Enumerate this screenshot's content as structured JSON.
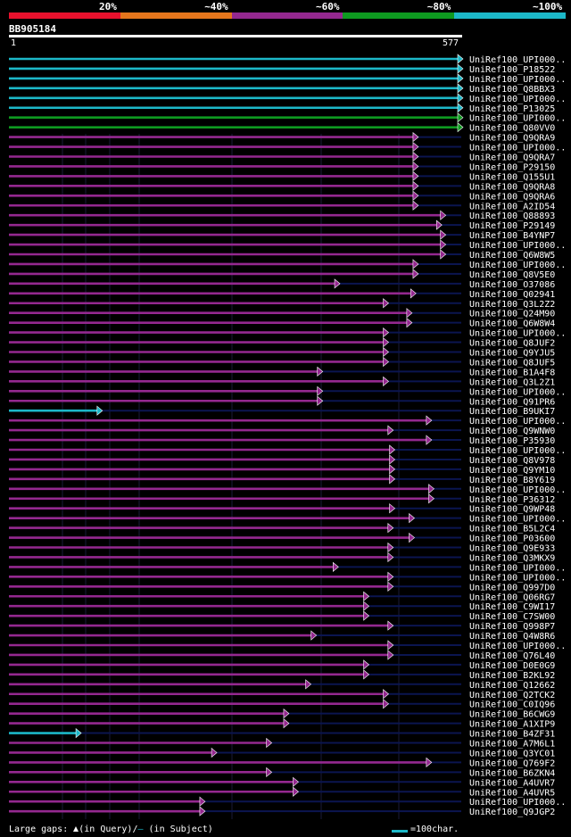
{
  "legend": {
    "bins": [
      {
        "label": "20%",
        "color": "#e8112d"
      },
      {
        "label": "~40%",
        "color": "#e6761c"
      },
      {
        "label": "~60%",
        "color": "#94288f"
      },
      {
        "label": "~80%",
        "color": "#0e9a20"
      },
      {
        "label": "~100%",
        "color": "#1cb8c8"
      }
    ]
  },
  "query": {
    "id": "BB905184",
    "start_label": "1",
    "end_label": "577"
  },
  "colors": {
    "cyan": "#1cb8c8",
    "green": "#0e9a20",
    "purple": "#94288f",
    "track": "#0b1550",
    "arrow_fill": "#cc66cc",
    "gap_marker": "#ffff99"
  },
  "chart_data": {
    "type": "alignment-overview",
    "query_length": 577,
    "hits": [
      {
        "name": "UniRef100_UPI000..",
        "end": 577,
        "identity": "~100%"
      },
      {
        "name": "UniRef100_P18522",
        "end": 577,
        "identity": "~100%"
      },
      {
        "name": "UniRef100_UPI000..",
        "end": 577,
        "identity": "~100%"
      },
      {
        "name": "UniRef100_Q8BBX3",
        "end": 577,
        "identity": "~100%"
      },
      {
        "name": "UniRef100_UPI000..",
        "end": 577,
        "identity": "~100%"
      },
      {
        "name": "UniRef100_P13025",
        "end": 577,
        "identity": "~100%"
      },
      {
        "name": "UniRef100_UPI000..",
        "end": 577,
        "identity": "~80%"
      },
      {
        "name": "UniRef100_Q80VV0",
        "end": 577,
        "identity": "~80%"
      },
      {
        "name": "UniRef100_Q9QRA9",
        "end": 520,
        "identity": "~60%"
      },
      {
        "name": "UniRef100_UPI000..",
        "end": 520,
        "identity": "~60%"
      },
      {
        "name": "UniRef100_Q9QRA7",
        "end": 520,
        "identity": "~60%"
      },
      {
        "name": "UniRef100_P29150",
        "end": 520,
        "identity": "~60%"
      },
      {
        "name": "UniRef100_Q155U1",
        "end": 520,
        "identity": "~60%"
      },
      {
        "name": "UniRef100_Q9QRA8",
        "end": 520,
        "identity": "~60%"
      },
      {
        "name": "UniRef100_Q9QRA6",
        "end": 520,
        "identity": "~60%"
      },
      {
        "name": "UniRef100_A2ID54",
        "end": 520,
        "identity": "~60%"
      },
      {
        "name": "UniRef100_Q88893",
        "end": 555,
        "identity": "~60%"
      },
      {
        "name": "UniRef100_P29149",
        "end": 550,
        "identity": "~60%"
      },
      {
        "name": "UniRef100_B4YNP7",
        "end": 555,
        "identity": "~60%"
      },
      {
        "name": "UniRef100_UPI000..",
        "end": 555,
        "identity": "~60%"
      },
      {
        "name": "UniRef100_Q6W8W5",
        "end": 555,
        "identity": "~60%"
      },
      {
        "name": "UniRef100_UPI000..",
        "end": 520,
        "identity": "~60%"
      },
      {
        "name": "UniRef100_Q8V5E0",
        "end": 520,
        "identity": "~60%"
      },
      {
        "name": "UniRef100_O37086",
        "end": 420,
        "identity": "~60%"
      },
      {
        "name": "UniRef100_Q02941",
        "end": 517,
        "identity": "~60%"
      },
      {
        "name": "UniRef100_Q3L2Z2",
        "end": 482,
        "identity": "~60%"
      },
      {
        "name": "UniRef100_Q24M90",
        "end": 512,
        "identity": "~60%"
      },
      {
        "name": "UniRef100_Q6W8W4",
        "end": 512,
        "identity": "~60%"
      },
      {
        "name": "UniRef100_UPI000..",
        "end": 482,
        "identity": "~60%"
      },
      {
        "name": "UniRef100_Q8JUF2",
        "end": 482,
        "identity": "~60%"
      },
      {
        "name": "UniRef100_Q9YJU5",
        "end": 482,
        "identity": "~60%"
      },
      {
        "name": "UniRef100_Q8JUF5",
        "end": 482,
        "identity": "~60%"
      },
      {
        "name": "UniRef100_B1A4F8",
        "end": 398,
        "identity": "~60%"
      },
      {
        "name": "UniRef100_Q3L2Z1",
        "end": 482,
        "identity": "~60%"
      },
      {
        "name": "UniRef100_UPI000..",
        "end": 398,
        "identity": "~60%"
      },
      {
        "name": "UniRef100_Q91PR6",
        "end": 398,
        "identity": "~60%"
      },
      {
        "name": "UniRef100_B9UKI7",
        "end": 117,
        "identity": "~100%"
      },
      {
        "name": "UniRef100_UPI000..",
        "end": 537,
        "identity": "~60%"
      },
      {
        "name": "UniRef100_Q9WNW0",
        "end": 488,
        "identity": "~60%"
      },
      {
        "name": "UniRef100_P35930",
        "end": 537,
        "identity": "~60%"
      },
      {
        "name": "UniRef100_UPI000..",
        "end": 490,
        "identity": "~60%"
      },
      {
        "name": "UniRef100_Q8V978",
        "end": 490,
        "identity": "~60%"
      },
      {
        "name": "UniRef100_Q9YM10",
        "end": 490,
        "identity": "~60%"
      },
      {
        "name": "UniRef100_B8Y619",
        "end": 490,
        "identity": "~60%"
      },
      {
        "name": "UniRef100_UPI000..",
        "end": 540,
        "identity": "~60%"
      },
      {
        "name": "UniRef100_P36312",
        "end": 540,
        "identity": "~60%"
      },
      {
        "name": "UniRef100_Q9WP48",
        "end": 490,
        "identity": "~60%"
      },
      {
        "name": "UniRef100_UPI000..",
        "end": 515,
        "identity": "~60%"
      },
      {
        "name": "UniRef100_B5L2C4",
        "end": 488,
        "identity": "~60%"
      },
      {
        "name": "UniRef100_P03600",
        "end": 515,
        "identity": "~60%"
      },
      {
        "name": "UniRef100_Q9E933",
        "end": 488,
        "identity": "~60%"
      },
      {
        "name": "UniRef100_Q3MKX9",
        "end": 488,
        "identity": "~60%"
      },
      {
        "name": "UniRef100_UPI000..",
        "end": 418,
        "identity": "~60%"
      },
      {
        "name": "UniRef100_UPI000..",
        "end": 488,
        "identity": "~60%"
      },
      {
        "name": "UniRef100_Q997D0",
        "end": 488,
        "identity": "~60%"
      },
      {
        "name": "UniRef100_Q06RG7",
        "end": 457,
        "identity": "~60%"
      },
      {
        "name": "UniRef100_C9WI17",
        "end": 457,
        "identity": "~60%"
      },
      {
        "name": "UniRef100_C7SW00",
        "end": 457,
        "identity": "~60%"
      },
      {
        "name": "UniRef100_Q998P7",
        "end": 488,
        "identity": "~60%"
      },
      {
        "name": "UniRef100_Q4W8R6",
        "end": 390,
        "identity": "~60%"
      },
      {
        "name": "UniRef100_UPI000..",
        "end": 488,
        "identity": "~60%"
      },
      {
        "name": "UniRef100_Q76L40",
        "end": 488,
        "identity": "~60%"
      },
      {
        "name": "UniRef100_D0E0G9",
        "end": 457,
        "identity": "~60%"
      },
      {
        "name": "UniRef100_B2KL92",
        "end": 457,
        "identity": "~60%"
      },
      {
        "name": "UniRef100_Q12662",
        "end": 383,
        "identity": "~60%"
      },
      {
        "name": "UniRef100_Q2TCK2",
        "end": 482,
        "identity": "~60%"
      },
      {
        "name": "UniRef100_C0IQ96",
        "end": 482,
        "identity": "~60%"
      },
      {
        "name": "UniRef100_B6CWG9",
        "end": 355,
        "identity": "~60%"
      },
      {
        "name": "UniRef100_A1XIP9",
        "end": 355,
        "identity": "~60%"
      },
      {
        "name": "UniRef100_B4ZF31",
        "end": 90,
        "identity": "~100%"
      },
      {
        "name": "UniRef100_A7M6L1",
        "end": 333,
        "identity": "~60%"
      },
      {
        "name": "UniRef100_Q3YC01",
        "end": 263,
        "identity": "~60%"
      },
      {
        "name": "UniRef100_Q769F2",
        "end": 537,
        "identity": "~60%"
      },
      {
        "name": "UniRef100_B6ZKN4",
        "end": 333,
        "identity": "~60%"
      },
      {
        "name": "UniRef100_A4UVR7",
        "end": 367,
        "identity": "~60%"
      },
      {
        "name": "UniRef100_A4UVR5",
        "end": 367,
        "identity": "~60%"
      },
      {
        "name": "UniRef100_UPI000..",
        "end": 248,
        "identity": "~60%"
      },
      {
        "name": "UniRef100_Q9JGP2",
        "end": 248,
        "identity": "~60%"
      }
    ]
  },
  "footer": {
    "gaps_prefix": "Large gaps: ",
    "gaps_query": "(in Query)/",
    "gaps_subject": "—",
    "gaps_suffix": " (in Subject)",
    "scale_label": "=100char."
  }
}
